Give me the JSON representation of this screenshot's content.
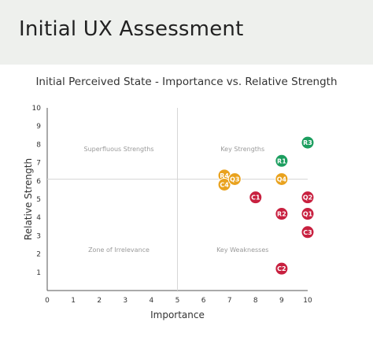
{
  "slide": {
    "title": "Initial UX Assessment"
  },
  "colors": {
    "red": "#c8203f",
    "green": "#1c9e5f",
    "orange": "#e9a21e",
    "header_bg": "#eef0ed"
  },
  "chart_data": {
    "type": "scatter",
    "title": "Initial Perceived State - Importance vs. Relative Strength",
    "xlabel": "Importance",
    "ylabel": "Relative Strength",
    "xlim": [
      0,
      10
    ],
    "ylim": [
      0,
      10
    ],
    "xticks": [
      "0",
      "1",
      "2",
      "3",
      "4",
      "5",
      "6",
      "7",
      "8",
      "9",
      "10"
    ],
    "yticks": [
      "1",
      "2",
      "3",
      "4",
      "5",
      "6",
      "7",
      "8",
      "9",
      "10"
    ],
    "grid": false,
    "reference_lines": {
      "x": 5,
      "y": 6.1
    },
    "quadrants": [
      {
        "label": "Superfluous Strengths",
        "x": 2.75,
        "y": 7.75
      },
      {
        "label": "Key Strengths",
        "x": 7.5,
        "y": 7.75
      },
      {
        "label": "Zone of Irrelevance",
        "x": 2.75,
        "y": 2.25
      },
      {
        "label": "Key Weaknesses",
        "x": 7.5,
        "y": 2.25
      }
    ],
    "points": [
      {
        "label": "R3",
        "x": 10,
        "y": 8.1,
        "color": "green"
      },
      {
        "label": "R1",
        "x": 9,
        "y": 7.1,
        "color": "green"
      },
      {
        "label": "R4",
        "x": 6.8,
        "y": 6.3,
        "color": "orange"
      },
      {
        "label": "C4",
        "x": 6.8,
        "y": 5.8,
        "color": "orange"
      },
      {
        "label": "Q3",
        "x": 7.2,
        "y": 6.1,
        "color": "orange"
      },
      {
        "label": "Q4",
        "x": 9,
        "y": 6.1,
        "color": "orange"
      },
      {
        "label": "C1",
        "x": 8,
        "y": 5.1,
        "color": "red"
      },
      {
        "label": "Q2",
        "x": 10,
        "y": 5.1,
        "color": "red"
      },
      {
        "label": "R2",
        "x": 9,
        "y": 4.2,
        "color": "red"
      },
      {
        "label": "Q1",
        "x": 10,
        "y": 4.2,
        "color": "red"
      },
      {
        "label": "C3",
        "x": 10,
        "y": 3.2,
        "color": "red"
      },
      {
        "label": "C2",
        "x": 9,
        "y": 1.2,
        "color": "red"
      }
    ]
  }
}
